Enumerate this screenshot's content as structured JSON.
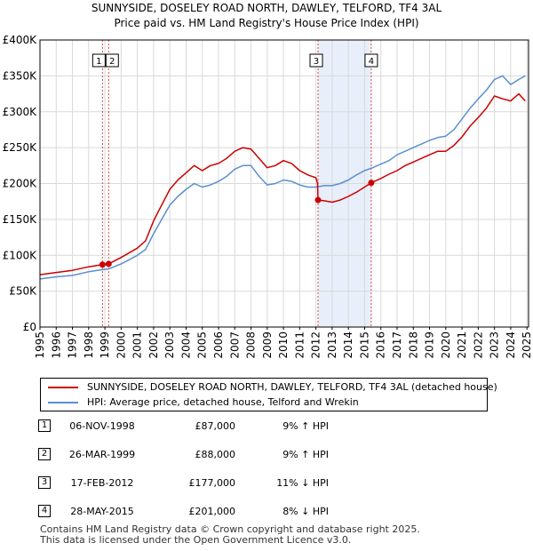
{
  "chart_data": {
    "type": "line",
    "title": "SUNNYSIDE, DOSELEY ROAD NORTH, DAWLEY, TELFORD, TF4 3AL",
    "subtitle": "Price paid vs. HM Land Registry's House Price Index (HPI)",
    "xlabel": "",
    "ylabel": "",
    "xlim": [
      1995,
      2025.1
    ],
    "ylim": [
      0,
      400000
    ],
    "x_ticks": [
      1995,
      1996,
      1997,
      1998,
      1999,
      2000,
      2001,
      2002,
      2003,
      2004,
      2005,
      2006,
      2007,
      2008,
      2009,
      2010,
      2011,
      2012,
      2013,
      2014,
      2015,
      2016,
      2017,
      2018,
      2019,
      2020,
      2021,
      2022,
      2023,
      2024,
      2025
    ],
    "y_ticks": [
      {
        "value": 0,
        "label": "£0"
      },
      {
        "value": 50000,
        "label": "£50K"
      },
      {
        "value": 100000,
        "label": "£100K"
      },
      {
        "value": 150000,
        "label": "£150K"
      },
      {
        "value": 200000,
        "label": "£200K"
      },
      {
        "value": 250000,
        "label": "£250K"
      },
      {
        "value": 300000,
        "label": "£300K"
      },
      {
        "value": 350000,
        "label": "£350K"
      },
      {
        "value": 400000,
        "label": "£400K"
      }
    ],
    "grid": true,
    "highlight_span": {
      "from": 2012.13,
      "to": 2015.41
    },
    "series": [
      {
        "name": "SUNNYSIDE, DOSELEY ROAD NORTH, DAWLEY, TELFORD, TF4 3AL (detached house)",
        "color": "#cc0000",
        "x": [
          1995.0,
          1996.0,
          1997.0,
          1998.0,
          1998.85,
          1999.23,
          2000.0,
          2001.0,
          2001.5,
          2002.0,
          2002.5,
          2003.0,
          2003.5,
          2004.0,
          2004.5,
          2005.0,
          2005.5,
          2006.0,
          2006.5,
          2007.0,
          2007.5,
          2008.0,
          2008.5,
          2009.0,
          2009.5,
          2010.0,
          2010.5,
          2011.0,
          2011.5,
          2012.0,
          2012.1,
          2012.13,
          2012.5,
          2013.0,
          2013.5,
          2014.0,
          2014.5,
          2015.0,
          2015.41,
          2016.0,
          2016.5,
          2017.0,
          2017.5,
          2018.0,
          2018.5,
          2019.0,
          2019.5,
          2020.0,
          2020.5,
          2021.0,
          2021.5,
          2022.0,
          2022.5,
          2023.0,
          2023.5,
          2024.0,
          2024.5,
          2024.9
        ],
        "values": [
          73000,
          76000,
          79000,
          84000,
          87000,
          88000,
          97000,
          110000,
          120000,
          148000,
          170000,
          192000,
          205000,
          215000,
          225000,
          218000,
          225000,
          228000,
          235000,
          245000,
          250000,
          248000,
          235000,
          222000,
          225000,
          232000,
          228000,
          218000,
          212000,
          208000,
          200000,
          177000,
          176000,
          174000,
          177000,
          182000,
          188000,
          195000,
          201000,
          207000,
          213000,
          218000,
          225000,
          230000,
          235000,
          240000,
          245000,
          245000,
          253000,
          265000,
          280000,
          292000,
          305000,
          322000,
          318000,
          315000,
          325000,
          315000
        ]
      },
      {
        "name": "HPI: Average price, detached house, Telford and Wrekin",
        "color": "#5b8fcf",
        "x": [
          1995.0,
          1996.0,
          1997.0,
          1998.0,
          1998.85,
          1999.23,
          2000.0,
          2001.0,
          2001.5,
          2002.0,
          2002.5,
          2003.0,
          2003.5,
          2004.0,
          2004.5,
          2005.0,
          2005.5,
          2006.0,
          2006.5,
          2007.0,
          2007.5,
          2008.0,
          2008.5,
          2009.0,
          2009.5,
          2010.0,
          2010.5,
          2011.0,
          2011.5,
          2012.0,
          2012.5,
          2013.0,
          2013.5,
          2014.0,
          2014.5,
          2015.0,
          2015.5,
          2016.0,
          2016.5,
          2017.0,
          2017.5,
          2018.0,
          2018.5,
          2019.0,
          2019.5,
          2020.0,
          2020.5,
          2021.0,
          2021.5,
          2022.0,
          2022.5,
          2023.0,
          2023.5,
          2024.0,
          2024.5,
          2024.9
        ],
        "values": [
          67000,
          70000,
          72000,
          77000,
          80000,
          81000,
          88000,
          100000,
          108000,
          130000,
          150000,
          170000,
          182000,
          192000,
          200000,
          195000,
          198000,
          203000,
          210000,
          220000,
          225000,
          225000,
          210000,
          198000,
          200000,
          205000,
          203000,
          198000,
          195000,
          195000,
          197000,
          197000,
          200000,
          205000,
          212000,
          218000,
          222000,
          227000,
          232000,
          240000,
          245000,
          250000,
          255000,
          260000,
          264000,
          266000,
          275000,
          290000,
          305000,
          318000,
          330000,
          345000,
          350000,
          338000,
          345000,
          350000
        ]
      }
    ],
    "sales": [
      {
        "num": "1",
        "x": 1998.85,
        "price": 87000
      },
      {
        "num": "2",
        "x": 1999.23,
        "price": 88000
      },
      {
        "num": "3",
        "x": 2012.13,
        "price": 177000
      },
      {
        "num": "4",
        "x": 2015.41,
        "price": 201000
      }
    ]
  },
  "legend": {
    "property_label": "SUNNYSIDE, DOSELEY ROAD NORTH, DAWLEY, TELFORD, TF4 3AL (detached house)",
    "hpi_label": "HPI: Average price, detached house, Telford and Wrekin",
    "property_color": "#cc0000",
    "hpi_color": "#5b8fcf"
  },
  "transactions": [
    {
      "num": "1",
      "date": "06-NOV-1998",
      "price": "£87,000",
      "hpi": "9% ↑ HPI"
    },
    {
      "num": "2",
      "date": "26-MAR-1999",
      "price": "£88,000",
      "hpi": "9% ↑ HPI"
    },
    {
      "num": "3",
      "date": "17-FEB-2012",
      "price": "£177,000",
      "hpi": "11% ↓ HPI"
    },
    {
      "num": "4",
      "date": "28-MAY-2015",
      "price": "£201,000",
      "hpi": "8% ↓ HPI"
    }
  ],
  "footer": {
    "line1": "Contains HM Land Registry data © Crown copyright and database right 2025.",
    "line2": "This data is licensed under the Open Government Licence v3.0."
  }
}
